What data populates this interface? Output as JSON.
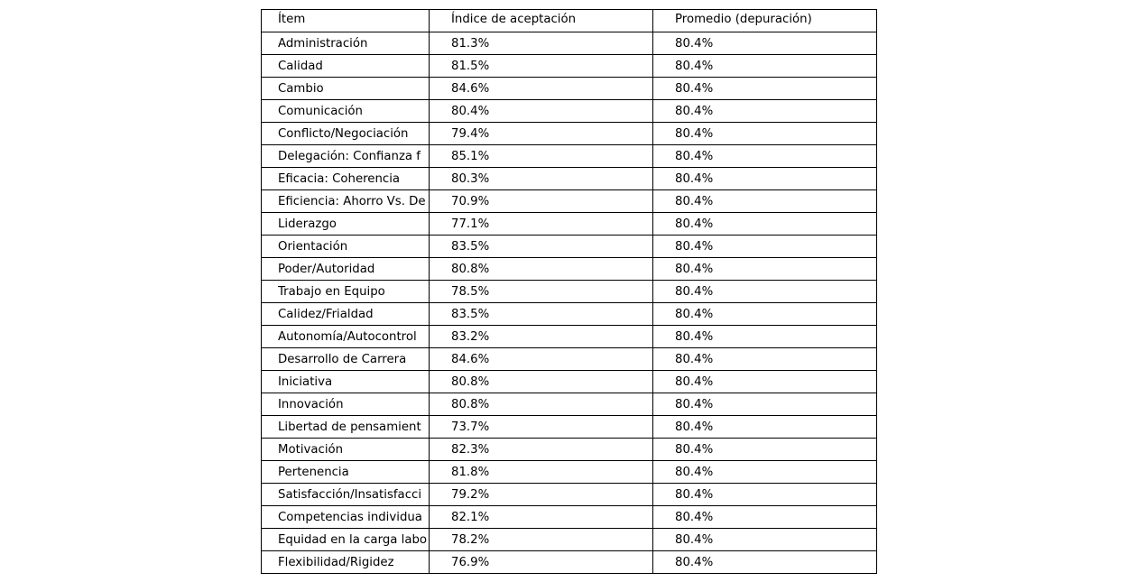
{
  "chart_data": {
    "type": "table",
    "columns": [
      "Ítem",
      "Índice de aceptación",
      "Promedio (depuración)"
    ],
    "rows": [
      [
        "Administración",
        "81.3%",
        "80.4%"
      ],
      [
        "Calidad",
        "81.5%",
        "80.4%"
      ],
      [
        "Cambio",
        "84.6%",
        "80.4%"
      ],
      [
        "Comunicación",
        "80.4%",
        "80.4%"
      ],
      [
        "Conflicto/Negociación",
        "79.4%",
        "80.4%"
      ],
      [
        "Delegación: Confianza f",
        "85.1%",
        "80.4%"
      ],
      [
        "Eficacia: Coherencia",
        "80.3%",
        "80.4%"
      ],
      [
        "Eficiencia: Ahorro Vs. De",
        "70.9%",
        "80.4%"
      ],
      [
        "Liderazgo",
        "77.1%",
        "80.4%"
      ],
      [
        "Orientación",
        "83.5%",
        "80.4%"
      ],
      [
        "Poder/Autoridad",
        "80.8%",
        "80.4%"
      ],
      [
        "Trabajo en Equipo",
        "78.5%",
        "80.4%"
      ],
      [
        "Calidez/Frialdad",
        "83.5%",
        "80.4%"
      ],
      [
        "Autonomía/Autocontrol",
        "83.2%",
        "80.4%"
      ],
      [
        "Desarrollo de Carrera",
        "84.6%",
        "80.4%"
      ],
      [
        "Iniciativa",
        "80.8%",
        "80.4%"
      ],
      [
        "Innovación",
        "80.8%",
        "80.4%"
      ],
      [
        "Libertad de pensamient",
        "73.7%",
        "80.4%"
      ],
      [
        "Motivación",
        "82.3%",
        "80.4%"
      ],
      [
        "Pertenencia",
        "81.8%",
        "80.4%"
      ],
      [
        "Satisfacción/Insatisfacci",
        "79.2%",
        "80.4%"
      ],
      [
        "Competencias individua",
        "82.1%",
        "80.4%"
      ],
      [
        "Equidad en la carga labo",
        "78.2%",
        "80.4%"
      ],
      [
        "Flexibilidad/Rigidez",
        "76.9%",
        "80.4%"
      ]
    ]
  }
}
